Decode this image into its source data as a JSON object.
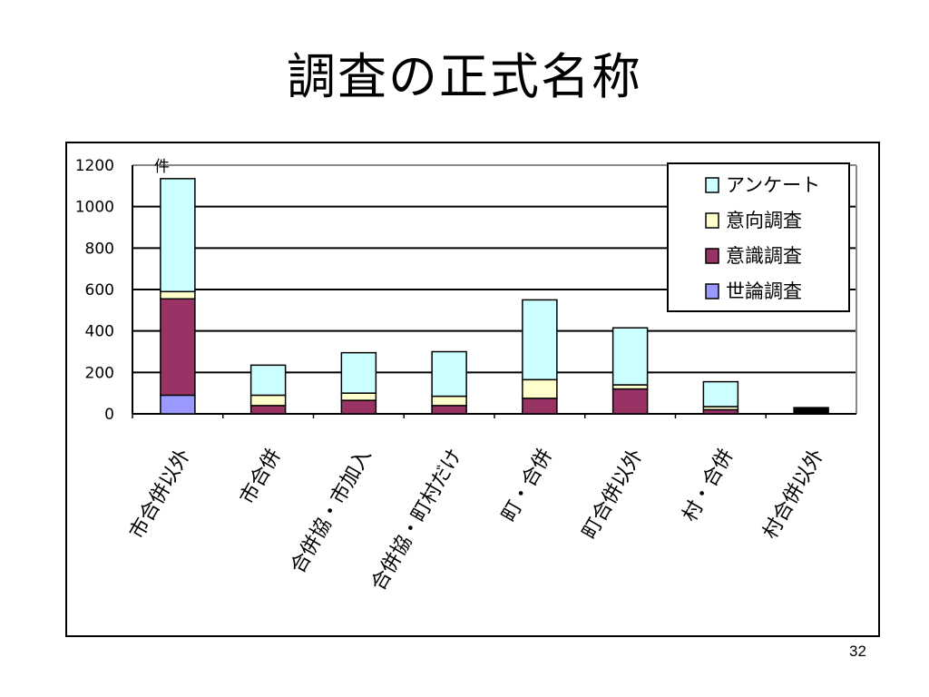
{
  "slide": {
    "title": "調査の正式名称",
    "page_number": "32"
  },
  "chart_data": {
    "type": "bar",
    "stacked": true,
    "unit_label": "件",
    "categories": [
      "市合併以外",
      "市合併",
      "合併協・市加入",
      "合併協・町村だけ",
      "町・合併",
      "町合併以外",
      "村・合併",
      "村合併以外"
    ],
    "series": [
      {
        "name": "世論調査",
        "color": "#9999ff",
        "values": [
          90,
          0,
          0,
          0,
          0,
          0,
          0,
          0
        ]
      },
      {
        "name": "意識調査",
        "color": "#993366",
        "values": [
          465,
          40,
          65,
          40,
          75,
          120,
          20,
          30
        ]
      },
      {
        "name": "意向調査",
        "color": "#ffffcc",
        "values": [
          35,
          50,
          35,
          45,
          90,
          20,
          15,
          0
        ]
      },
      {
        "name": "アンケート",
        "color": "#ccffff",
        "values": [
          545,
          145,
          195,
          215,
          385,
          275,
          120,
          0
        ]
      }
    ],
    "ylim": [
      0,
      1200
    ],
    "yticks": [
      "0",
      "200",
      "400",
      "600",
      "800",
      "1000",
      "1200"
    ],
    "grid": true,
    "legend_position": "top-right"
  }
}
